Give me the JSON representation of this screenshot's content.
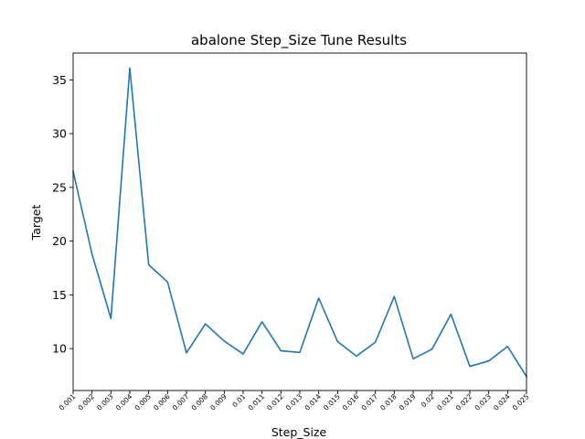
{
  "chart_data": {
    "type": "line",
    "title": "abalone Step_Size Tune Results",
    "xlabel": "Step_Size",
    "ylabel": "Target",
    "categories": [
      "0.001",
      "0.002",
      "0.003",
      "0.004",
      "0.005",
      "0.006",
      "0.007",
      "0.008",
      "0.009",
      "0.01",
      "0.011",
      "0.012",
      "0.013",
      "0.014",
      "0.015",
      "0.016",
      "0.017",
      "0.018",
      "0.019",
      "0.02",
      "0.021",
      "0.022",
      "0.023",
      "0.024",
      "0.025"
    ],
    "series": [
      {
        "values": [
          26.5,
          18.8,
          12.8,
          36.1,
          17.8,
          16.2,
          9.6,
          12.3,
          10.7,
          9.5,
          12.5,
          9.8,
          9.65,
          14.7,
          10.65,
          9.3,
          10.6,
          14.85,
          9.05,
          9.95,
          13.2,
          8.35,
          8.85,
          10.2,
          7.4
        ]
      }
    ],
    "ylim": [
      6.1,
      37.5
    ],
    "yticks": [
      10,
      15,
      20,
      25,
      30,
      35
    ],
    "grid": false,
    "legend": false,
    "colors": {
      "line": "#1f77b4",
      "axes": "#000000",
      "background": "#ffffff"
    }
  }
}
